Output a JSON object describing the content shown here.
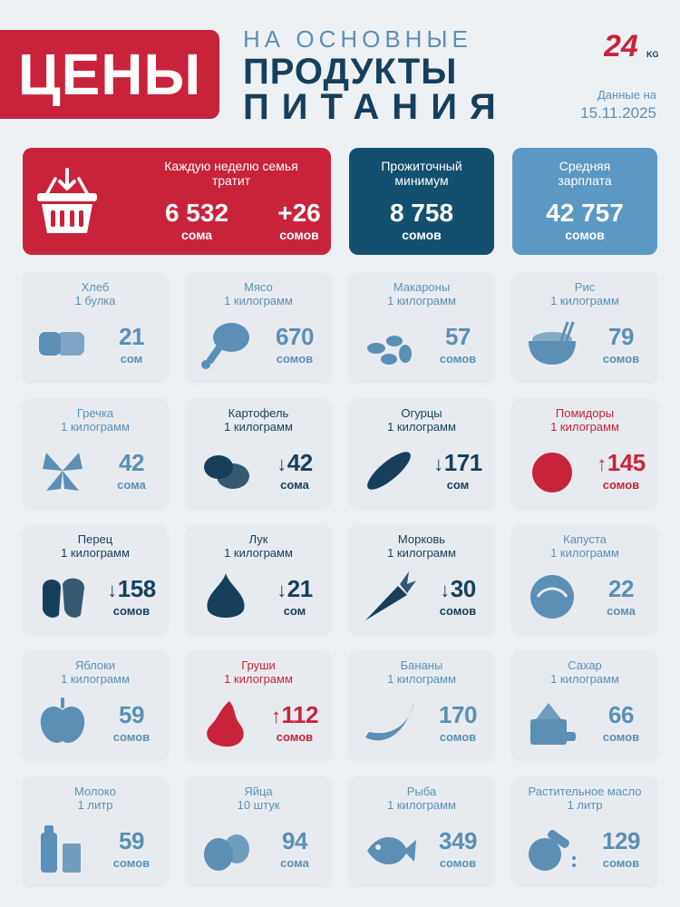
{
  "header": {
    "main_title": "ЦЕНЫ",
    "sub_line1": "НА ОСНОВНЫЕ",
    "sub_line2": "ПРОДУКТЫ",
    "sub_line3": "ПИТАНИЯ",
    "logo_text": "24",
    "logo_suffix": "KG",
    "date_label": "Данные на",
    "date_value": "15.11.2025"
  },
  "summary": {
    "weekly": {
      "caption": "Каждую неделю семья тратит",
      "amount": "6 532",
      "amount_unit": "сома",
      "change": "+26",
      "change_unit": "сомов"
    },
    "minimum": {
      "caption": "Прожиточный минимум",
      "amount": "8 758",
      "unit": "сомов"
    },
    "salary": {
      "caption": "Средняя зарплата",
      "amount": "42 757",
      "unit": "сомов"
    }
  },
  "products": [
    {
      "name": "Хлеб",
      "unit": "1 булка",
      "price": "21",
      "currency": "сом",
      "trend": "none",
      "icon": "bread-icon"
    },
    {
      "name": "Мясо",
      "unit": "1 килограмм",
      "price": "670",
      "currency": "сомов",
      "trend": "none",
      "icon": "meat-icon"
    },
    {
      "name": "Макароны",
      "unit": "1 килограмм",
      "price": "57",
      "currency": "сомов",
      "trend": "none",
      "icon": "pasta-icon"
    },
    {
      "name": "Рис",
      "unit": "1 килограмм",
      "price": "79",
      "currency": "сомов",
      "trend": "none",
      "icon": "rice-icon"
    },
    {
      "name": "Гречка",
      "unit": "1 килограмм",
      "price": "42",
      "currency": "сома",
      "trend": "none",
      "icon": "buckwheat-icon"
    },
    {
      "name": "Картофель",
      "unit": "1 килограмм",
      "price": "42",
      "currency": "сома",
      "trend": "down",
      "icon": "potato-icon"
    },
    {
      "name": "Огурцы",
      "unit": "1 килограмм",
      "price": "171",
      "currency": "сом",
      "trend": "down",
      "icon": "cucumber-icon"
    },
    {
      "name": "Помидоры",
      "unit": "1 килограмм",
      "price": "145",
      "currency": "сомов",
      "trend": "up",
      "icon": "tomato-icon"
    },
    {
      "name": "Перец",
      "unit": "1 килограмм",
      "price": "158",
      "currency": "сомов",
      "trend": "down",
      "icon": "pepper-icon"
    },
    {
      "name": "Лук",
      "unit": "1 килограмм",
      "price": "21",
      "currency": "сом",
      "trend": "down",
      "icon": "onion-icon"
    },
    {
      "name": "Морковь",
      "unit": "1 килограмм",
      "price": "30",
      "currency": "сомов",
      "trend": "down",
      "icon": "carrot-icon"
    },
    {
      "name": "Капуста",
      "unit": "1 килограмм",
      "price": "22",
      "currency": "сома",
      "trend": "none",
      "icon": "cabbage-icon"
    },
    {
      "name": "Яблоки",
      "unit": "1 килограмм",
      "price": "59",
      "currency": "сомов",
      "trend": "none",
      "icon": "apple-icon"
    },
    {
      "name": "Груши",
      "unit": "1 килограмм",
      "price": "112",
      "currency": "сомов",
      "trend": "up",
      "icon": "pear-icon"
    },
    {
      "name": "Бананы",
      "unit": "1 килограмм",
      "price": "170",
      "currency": "сомов",
      "trend": "none",
      "icon": "banana-icon"
    },
    {
      "name": "Сахар",
      "unit": "1 килограмм",
      "price": "66",
      "currency": "сомов",
      "trend": "none",
      "icon": "sugar-icon"
    },
    {
      "name": "Молоко",
      "unit": "1 литр",
      "price": "59",
      "currency": "сомов",
      "trend": "none",
      "icon": "milk-icon"
    },
    {
      "name": "Яйца",
      "unit": "10 штук",
      "price": "94",
      "currency": "сома",
      "trend": "none",
      "icon": "eggs-icon"
    },
    {
      "name": "Рыба",
      "unit": "1 килограмм",
      "price": "349",
      "currency": "сомов",
      "trend": "none",
      "icon": "fish-icon"
    },
    {
      "name": "Растительное масло",
      "unit": "1 литр",
      "price": "129",
      "currency": "сомов",
      "trend": "none",
      "icon": "oil-icon"
    }
  ],
  "colors": {
    "red": "#c8233a",
    "dark": "#163f5c",
    "light": "#5b8fb5",
    "dark_box": "#13506f",
    "light_box": "#5b98c4"
  }
}
